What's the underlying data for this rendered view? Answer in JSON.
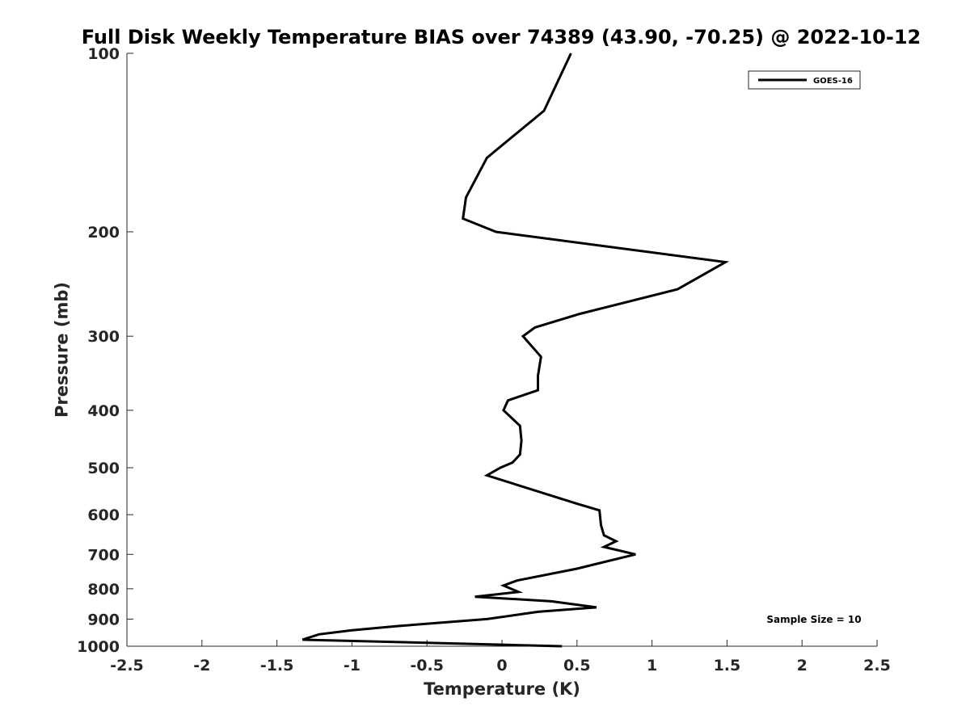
{
  "chart_data": {
    "type": "line",
    "title": "Full Disk Weekly Temperature BIAS over 74389 (43.90, -70.25) @ 2022-10-12",
    "xlabel": "Temperature (K)",
    "ylabel": "Pressure (mb)",
    "xlim": [
      -2.5,
      2.5
    ],
    "ylim": [
      100,
      1000
    ],
    "y_scale": "log",
    "y_reversed": true,
    "grid": false,
    "x_ticks": [
      {
        "value": -2.5,
        "label": "-2.5"
      },
      {
        "value": -2,
        "label": "-2"
      },
      {
        "value": -1.5,
        "label": "-1.5"
      },
      {
        "value": -1,
        "label": "-1"
      },
      {
        "value": -0.5,
        "label": "-0.5"
      },
      {
        "value": 0,
        "label": "0"
      },
      {
        "value": 0.5,
        "label": "0.5"
      },
      {
        "value": 1,
        "label": "1"
      },
      {
        "value": 1.5,
        "label": "1.5"
      },
      {
        "value": 2,
        "label": "2"
      },
      {
        "value": 2.5,
        "label": "2.5"
      }
    ],
    "y_ticks": [
      {
        "value": 100,
        "label": "100"
      },
      {
        "value": 200,
        "label": "200"
      },
      {
        "value": 300,
        "label": "300"
      },
      {
        "value": 400,
        "label": "400"
      },
      {
        "value": 500,
        "label": "500"
      },
      {
        "value": 600,
        "label": "600"
      },
      {
        "value": 700,
        "label": "700"
      },
      {
        "value": 800,
        "label": "800"
      },
      {
        "value": 900,
        "label": "900"
      },
      {
        "value": 1000,
        "label": "1000"
      }
    ],
    "legend": {
      "position": "top-right",
      "entries": [
        "GOES-16"
      ]
    },
    "annotation": "Sample Size = 10",
    "series": [
      {
        "name": "GOES-16",
        "color": "#000000",
        "points": [
          {
            "t": 0.46,
            "p": 100
          },
          {
            "t": 0.28,
            "p": 125
          },
          {
            "t": -0.1,
            "p": 150
          },
          {
            "t": -0.24,
            "p": 175
          },
          {
            "t": -0.26,
            "p": 190
          },
          {
            "t": -0.04,
            "p": 200
          },
          {
            "t": 1.49,
            "p": 225
          },
          {
            "t": 1.17,
            "p": 250
          },
          {
            "t": 0.52,
            "p": 275
          },
          {
            "t": 0.22,
            "p": 290
          },
          {
            "t": 0.14,
            "p": 300
          },
          {
            "t": 0.26,
            "p": 325
          },
          {
            "t": 0.24,
            "p": 350
          },
          {
            "t": 0.24,
            "p": 370
          },
          {
            "t": 0.04,
            "p": 385
          },
          {
            "t": 0.01,
            "p": 400
          },
          {
            "t": 0.12,
            "p": 425
          },
          {
            "t": 0.13,
            "p": 450
          },
          {
            "t": 0.12,
            "p": 475
          },
          {
            "t": 0.07,
            "p": 490
          },
          {
            "t": -0.01,
            "p": 500
          },
          {
            "t": -0.1,
            "p": 515
          },
          {
            "t": 0.5,
            "p": 575
          },
          {
            "t": 0.65,
            "p": 590
          },
          {
            "t": 0.66,
            "p": 625
          },
          {
            "t": 0.68,
            "p": 650
          },
          {
            "t": 0.76,
            "p": 665
          },
          {
            "t": 0.68,
            "p": 680
          },
          {
            "t": 0.89,
            "p": 700
          },
          {
            "t": 0.5,
            "p": 740
          },
          {
            "t": 0.1,
            "p": 775
          },
          {
            "t": 0.01,
            "p": 790
          },
          {
            "t": 0.11,
            "p": 810
          },
          {
            "t": -0.18,
            "p": 825
          },
          {
            "t": 0.33,
            "p": 840
          },
          {
            "t": 0.63,
            "p": 860
          },
          {
            "t": 0.24,
            "p": 875
          },
          {
            "t": -0.1,
            "p": 900
          },
          {
            "t": -0.7,
            "p": 925
          },
          {
            "t": -1.0,
            "p": 940
          },
          {
            "t": -1.22,
            "p": 955
          },
          {
            "t": -1.33,
            "p": 975
          },
          {
            "t": 0.4,
            "p": 1000
          }
        ]
      }
    ]
  }
}
